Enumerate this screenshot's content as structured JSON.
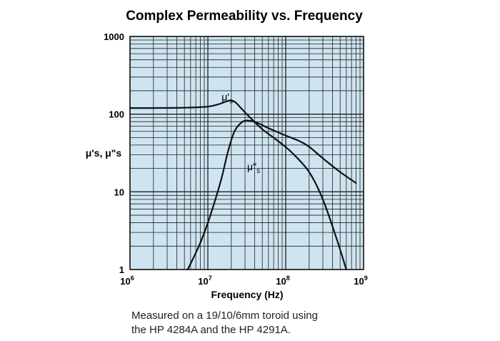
{
  "chart_data": {
    "type": "line",
    "title": "Complex Permeability vs. Frequency",
    "xlabel": "Frequency (Hz)",
    "ylabel": "μ's, μ\"s",
    "x_scale": "log",
    "y_scale": "log",
    "xlim": [
      1000000,
      1000000000
    ],
    "ylim": [
      1,
      1000
    ],
    "grid": true,
    "background_color": "#cfe4f1",
    "grid_color": "#1f1f1f",
    "line_color": "#111111",
    "y_ticks": [
      {
        "value": 1,
        "label": "1"
      },
      {
        "value": 10,
        "label": "10"
      },
      {
        "value": 100,
        "label": "100"
      },
      {
        "value": 1000,
        "label": "1000"
      }
    ],
    "x_ticks": [
      {
        "value": 1000000,
        "base": "10",
        "exp": "6"
      },
      {
        "value": 10000000,
        "base": "10",
        "exp": "7"
      },
      {
        "value": 100000000,
        "base": "10",
        "exp": "8"
      },
      {
        "value": 1000000000,
        "base": "10",
        "exp": "9"
      }
    ],
    "series": [
      {
        "name": "μ's",
        "label_main": "μ'",
        "label_sub": "s",
        "label_at": [
          15000000,
          150
        ],
        "x": [
          1000000,
          2000000,
          5000000,
          10000000,
          14000000,
          17000000,
          20000000,
          23000000,
          27000000,
          35000000,
          50000000,
          80000000,
          120000000,
          200000000,
          300000000,
          450000000,
          600000000
        ],
        "y": [
          120,
          120,
          121,
          125,
          135,
          145,
          150,
          140,
          118,
          90,
          64,
          45,
          32,
          18,
          8,
          2.5,
          1
        ]
      },
      {
        "name": "μ\"s",
        "label_main": "μ\"",
        "label_sub": "s",
        "label_at": [
          32000000,
          19
        ],
        "x": [
          5500000,
          6500000,
          8000000,
          10000000,
          12000000,
          15000000,
          18000000,
          22000000,
          28000000,
          35000000,
          45000000,
          60000000,
          100000000,
          150000000,
          200000000,
          300000000,
          500000000,
          800000000
        ],
        "y": [
          1,
          1.4,
          2.2,
          4,
          7,
          15,
          32,
          60,
          80,
          82,
          76,
          66,
          53,
          45,
          38,
          27,
          18,
          13
        ]
      }
    ]
  },
  "caption": {
    "line1": "Measured on a 19/10/6mm toroid using",
    "line2": "the HP 4284A and the HP 4291A."
  }
}
